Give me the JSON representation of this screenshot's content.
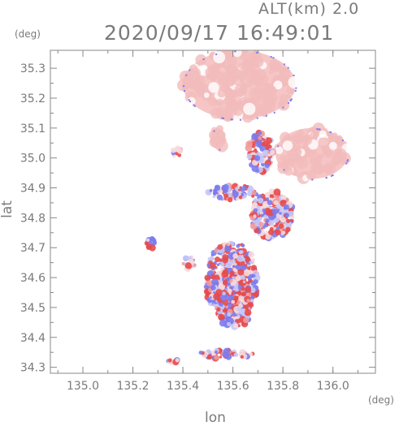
{
  "header": {
    "alt_label": "ALT(km)  2.0",
    "timestamp": "2020/09/17 16:49:01"
  },
  "chart_data": {
    "type": "heatmap",
    "xlabel": "lon",
    "ylabel": "lat",
    "x_unit": "(deg)",
    "y_unit": "(deg)",
    "xlim": [
      134.87,
      136.17
    ],
    "ylim": [
      34.28,
      35.36
    ],
    "xticks": [
      135.0,
      135.2,
      135.4,
      135.6,
      135.8,
      136.0
    ],
    "yticks": [
      34.3,
      34.4,
      34.5,
      34.6,
      34.7,
      34.8,
      34.9,
      35.0,
      35.1,
      35.2,
      35.3
    ],
    "grid": false,
    "colors": {
      "background_echo": "#f6c6c6",
      "positive": "#e84a4a",
      "negative": "#7b7bf0",
      "frame": "#888888"
    },
    "regions": [
      {
        "lon": [
          135.4,
          135.85
        ],
        "lat": [
          35.13,
          35.36
        ],
        "tone": "pink"
      },
      {
        "lon": [
          135.51,
          135.57
        ],
        "lat": [
          35.03,
          35.1
        ],
        "tone": "pink"
      },
      {
        "lon": [
          135.77,
          136.06
        ],
        "lat": [
          34.93,
          35.1
        ],
        "tone": "pink"
      },
      {
        "lon": [
          135.66,
          135.76
        ],
        "lat": [
          34.95,
          35.09
        ],
        "tone": "mixed"
      },
      {
        "lon": [
          135.5,
          135.7
        ],
        "lat": [
          34.86,
          34.91
        ],
        "tone": "mixed"
      },
      {
        "lon": [
          135.67,
          135.84
        ],
        "lat": [
          34.73,
          34.89
        ],
        "tone": "mixed"
      },
      {
        "lon": [
          135.49,
          135.7
        ],
        "lat": [
          34.46,
          34.72
        ],
        "tone": "mixed"
      },
      {
        "lon": [
          135.53,
          135.68
        ],
        "lat": [
          34.43,
          34.6
        ],
        "tone": "mixed"
      },
      {
        "lon": [
          135.46,
          135.68
        ],
        "lat": [
          34.33,
          34.36
        ],
        "tone": "mixed"
      },
      {
        "lon": [
          135.34,
          135.38
        ],
        "lat": [
          34.31,
          34.33
        ],
        "tone": "mixed"
      },
      {
        "lon": [
          135.36,
          135.39
        ],
        "lat": [
          35.0,
          35.04
        ],
        "tone": "mixed"
      },
      {
        "lon": [
          135.25,
          135.3
        ],
        "lat": [
          34.69,
          34.73
        ],
        "tone": "mixed"
      },
      {
        "lon": [
          135.4,
          135.45
        ],
        "lat": [
          34.63,
          34.67
        ],
        "tone": "mixed"
      }
    ]
  }
}
